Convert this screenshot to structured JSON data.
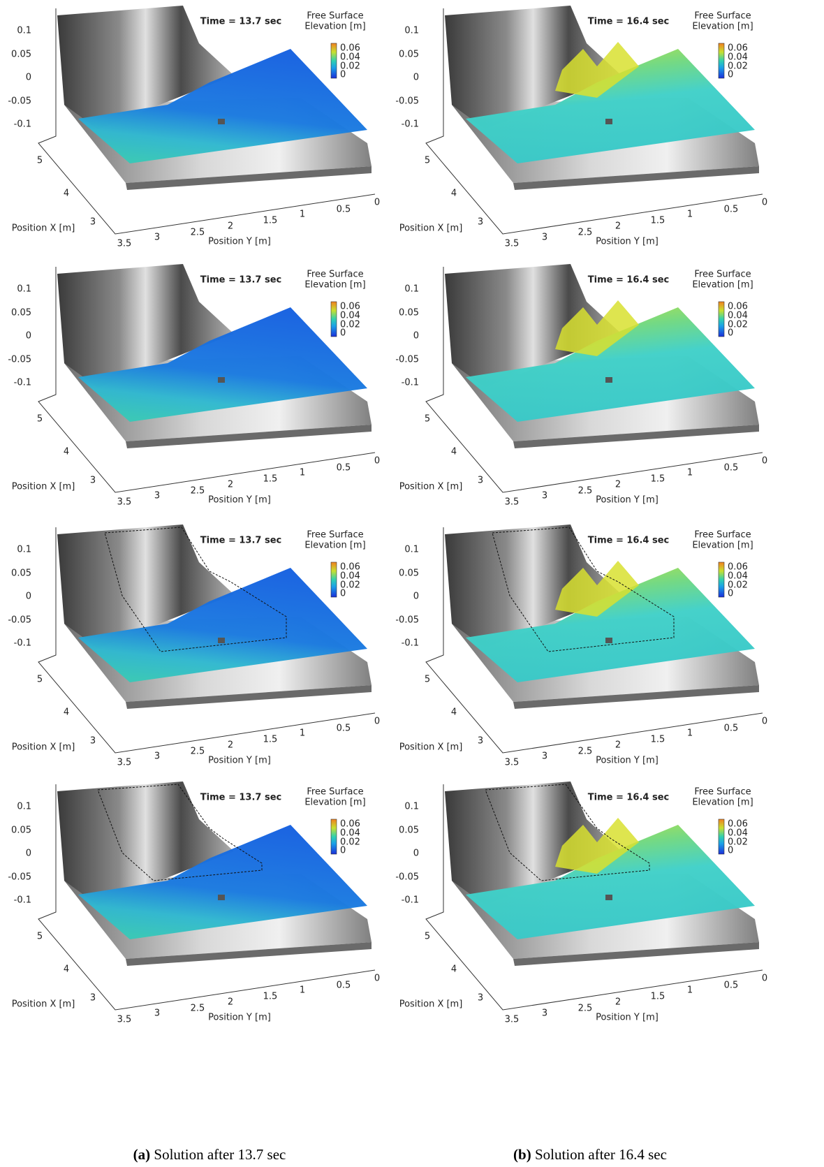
{
  "columns": [
    {
      "time_label": "Time = 13.7 sec",
      "caption_tag": "(a)",
      "caption_text": "Solution after 13.7 sec"
    },
    {
      "time_label": "Time = 16.4 sec",
      "caption_tag": "(b)",
      "caption_text": "Solution after 16.4 sec"
    }
  ],
  "axes": {
    "z_ticks": [
      0.1,
      0.05,
      0,
      -0.05,
      -0.1
    ],
    "x_ticks": [
      5,
      4,
      3
    ],
    "x_label": "Position X [m]",
    "y_ticks": [
      3.5,
      3,
      2.5,
      2,
      1.5,
      1,
      0.5,
      0
    ],
    "y_label": "Position Y [m]"
  },
  "colorbar": {
    "title": [
      "Free Surface",
      "Elevation [m]"
    ],
    "ticks": [
      0.06,
      0.04,
      0.02,
      0
    ]
  }
}
